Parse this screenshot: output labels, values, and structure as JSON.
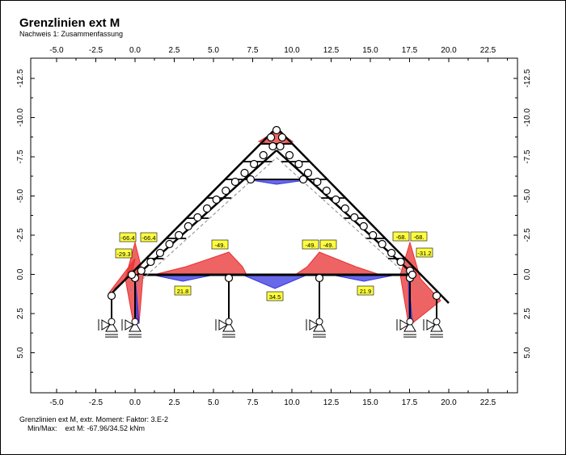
{
  "header": {
    "title": "Grenzlinien ext M",
    "subtitle": "Nachweis 1: Zusammenfassung"
  },
  "axes": {
    "x_ticks": [
      "-5.0",
      "-2.5",
      "0.0",
      "2.5",
      "5.0",
      "7.5",
      "10.0",
      "12.5",
      "15.0",
      "17.5",
      "20.0",
      "22.5"
    ],
    "y_ticks": [
      "-12.5",
      "-10.0",
      "-7.5",
      "-5.0",
      "-2.5",
      "0.0",
      "2.5",
      "5.0"
    ]
  },
  "labels": [
    "-66.4",
    "-66.4",
    "-29.3",
    "-49.",
    "-49.",
    "-49.",
    "-68.",
    "-68.",
    "-31.2",
    "21.8",
    "34.5",
    "21.9"
  ],
  "footer": {
    "line1": "Grenzlinien ext M, extr. Moment: Faktor: 3.E-2",
    "line2": "Min/Max:    ext M: -67.96/34.52 kNm"
  }
}
